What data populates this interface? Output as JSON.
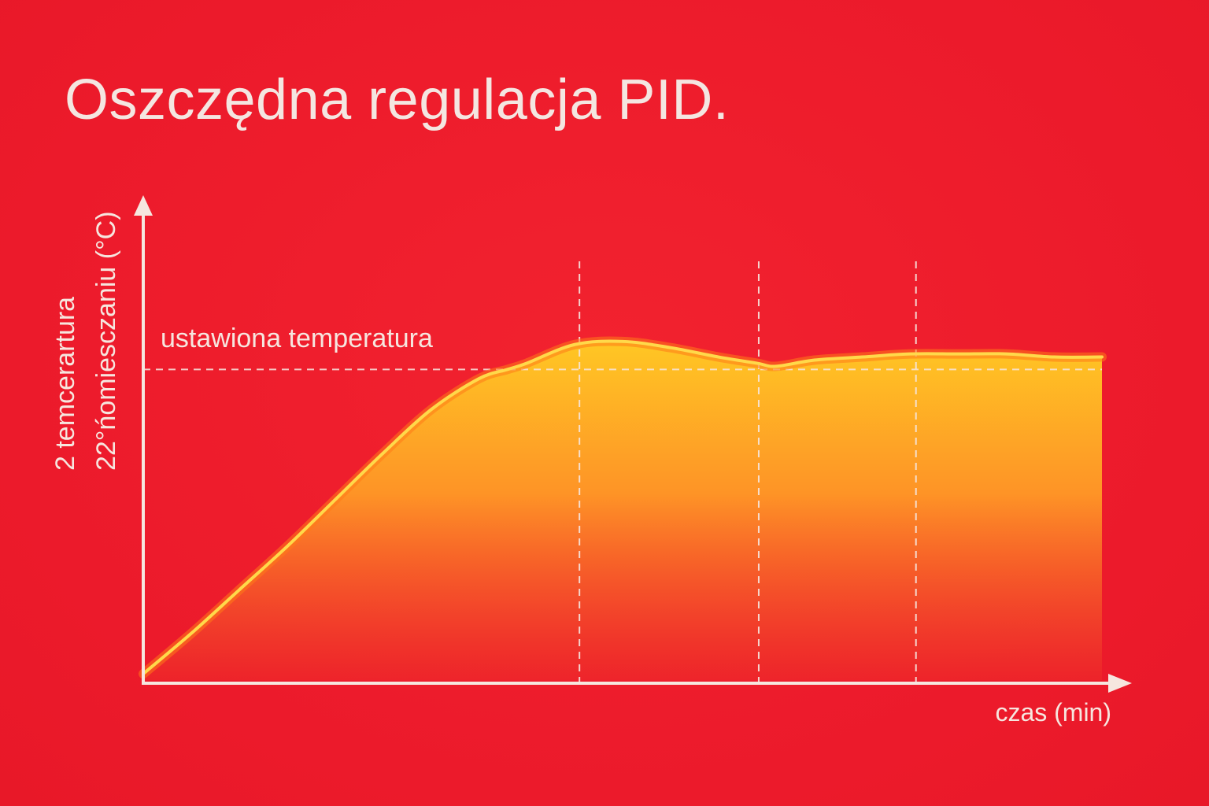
{
  "title": "Oszczędna regulacja PID.",
  "chart_data": {
    "type": "area",
    "title": "Oszczędna regulacja PID.",
    "ylabel_lines": [
      "2 temcerartura",
      "22°ńomiesczaniu (°C)"
    ],
    "xlabel": "czas (min)",
    "setpoint_label": "ustawiona temperatura",
    "setpoint": 1.0,
    "x_range": [
      0,
      100
    ],
    "y_range": [
      0,
      1.5
    ],
    "vertical_markers": [
      45.5,
      64.2,
      80.6
    ],
    "series": [
      {
        "x": [
          0,
          5,
          10,
          15,
          20,
          25,
          30,
          35,
          38,
          40,
          45,
          50,
          55,
          60,
          64,
          66,
          70,
          75,
          80,
          85,
          90,
          95,
          100
        ],
        "y": [
          0.02,
          0.15,
          0.29,
          0.43,
          0.58,
          0.73,
          0.87,
          0.97,
          1.0,
          1.02,
          1.08,
          1.09,
          1.07,
          1.04,
          1.02,
          1.01,
          1.03,
          1.04,
          1.05,
          1.05,
          1.05,
          1.04,
          1.04
        ]
      }
    ],
    "colors": {
      "background": "#ef1c2c",
      "axis": "#f6e6df",
      "line": "#ffd23a",
      "fill_top": "#ffc21f",
      "fill_bottom": "#ee2a2a",
      "setpoint": "#f6e6df"
    }
  }
}
